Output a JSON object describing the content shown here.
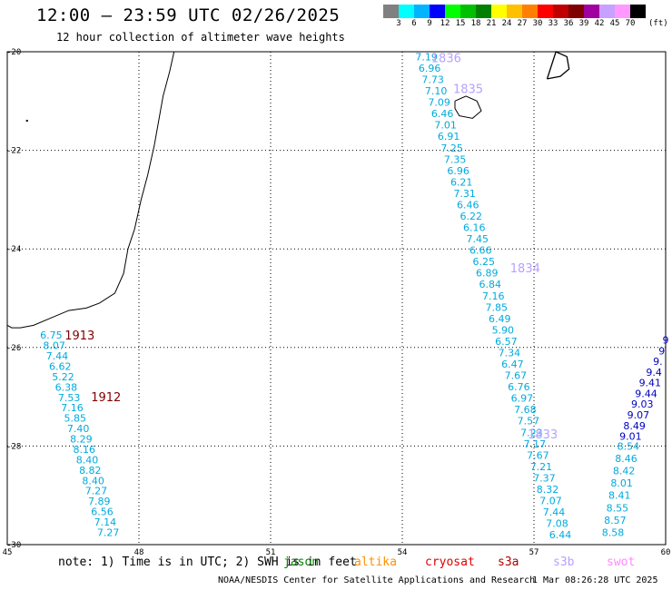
{
  "header": {
    "title": "12:00 – 23:59 UTC 02/26/2025",
    "subtitle": "12 hour collection of altimeter wave heights"
  },
  "colorbar": {
    "colors": [
      "#808080",
      "#00ffff",
      "#00b4ff",
      "#0000ff",
      "#00ff00",
      "#00c000",
      "#008000",
      "#ffff00",
      "#ffc000",
      "#ff8000",
      "#ff0000",
      "#c00000",
      "#800000",
      "#a000a0",
      "#c8a0ff",
      "#ff99ff",
      "#000000"
    ],
    "labels": [
      "3",
      "6",
      "9",
      "12",
      "15",
      "18",
      "21",
      "24",
      "27",
      "30",
      "33",
      "36",
      "39",
      "42",
      "45",
      "70"
    ],
    "unit": "(ft)"
  },
  "axes": {
    "lon_ticks": [
      "45",
      "48",
      "51",
      "54",
      "57",
      "60"
    ],
    "lat_ticks": [
      "-20",
      "-22",
      "-24",
      "-26",
      "-28",
      "-30"
    ],
    "lon_range": [
      45,
      60
    ],
    "lat_range": [
      -20,
      -30
    ]
  },
  "tracks": [
    {
      "satellite": "jason",
      "color": "#00aadd",
      "labels": [
        {
          "text": "1913",
          "lon": 46.65,
          "lat": -25.75,
          "color": "#800000"
        },
        {
          "text": "1912",
          "lon": 47.25,
          "lat": -27.0,
          "color": "#800000"
        }
      ],
      "lon_start": 46.0,
      "lon_end": 47.3,
      "lat_start": -25.75,
      "lat_end": -29.75,
      "values": [
        "6.75",
        "8.07",
        "7.44",
        "6.62",
        "5.22",
        "6.38",
        "7.53",
        "7.16",
        "5.85",
        "7.40",
        "8.29",
        "8.16",
        "8.40",
        "8.82",
        "8.40",
        "7.27",
        "7.89",
        "6.56",
        "7.14",
        "7.27"
      ]
    },
    {
      "satellite": "s3b",
      "color": "#00aadd",
      "labels": [
        {
          "text": "1836",
          "lon": 55.0,
          "lat": -20.12,
          "color": "#b8a0ff"
        },
        {
          "text": "1835",
          "lon": 55.5,
          "lat": -20.75,
          "color": "#b8a0ff"
        },
        {
          "text": "1834",
          "lon": 56.8,
          "lat": -24.38,
          "color": "#b8a0ff"
        },
        {
          "text": "1833",
          "lon": 57.2,
          "lat": -27.75,
          "color": "#b8a0ff"
        }
      ],
      "lon_start": 54.55,
      "lon_end": 57.6,
      "lat_start": -20.1,
      "lat_end": -29.8,
      "values": [
        "7.19",
        "6.96",
        "7.73",
        "7.10",
        "7.09",
        "6.46",
        "7.01",
        "6.91",
        "7.25",
        "7.35",
        "6.96",
        "6.21",
        "7.31",
        "6.46",
        "6.22",
        "6.16",
        "7.45",
        "6.66",
        "6.25",
        "6.89",
        "6.84",
        "7.16",
        "7.85",
        "6.49",
        "5.90",
        "6.57",
        "7.34",
        "6.47",
        "7.67",
        "6.76",
        "6.97",
        "7.68",
        "7.57",
        "7.23",
        "7.17",
        "7.67",
        "7.21",
        "7.37",
        "8.32",
        "7.07",
        "7.44",
        "7.08",
        "6.44"
      ]
    },
    {
      "satellite": "saral",
      "color": "#0000c0",
      "lon_start": 60.0,
      "lon_end": 59.2,
      "lat_start": -25.85,
      "lat_end": -27.8,
      "values": [
        "9",
        "9",
        "9.",
        "9.4",
        "9.41",
        "9.44",
        "9.03",
        "9.07",
        "8.49",
        "9.01"
      ]
    },
    {
      "satellite": "altika",
      "color": "#00aadd",
      "lon_start": 59.15,
      "lon_end": 58.8,
      "lat_start": -28.0,
      "lat_end": -29.75,
      "values": [
        "8.54",
        "8.46",
        "8.42",
        "8.01",
        "8.41",
        "8.55",
        "8.57",
        "8.58"
      ]
    }
  ],
  "legend": {
    "note": "note: 1) Time is in UTC; 2) SWH is in feet",
    "satellites": [
      {
        "name": "jason",
        "color": "#008000"
      },
      {
        "name": "altika",
        "color": "#ff9000"
      },
      {
        "name": "cryosat",
        "color": "#e00000"
      },
      {
        "name": "s3a",
        "color": "#b00000"
      },
      {
        "name": "s3b",
        "color": "#b8a0ff"
      },
      {
        "name": "swot",
        "color": "#ff88ff"
      }
    ]
  },
  "footer": {
    "credit": "NOAA/NESDIS Center for Satellite Applications and Research",
    "timestamp": "1 Mar 08:26:28 UTC 2025"
  }
}
